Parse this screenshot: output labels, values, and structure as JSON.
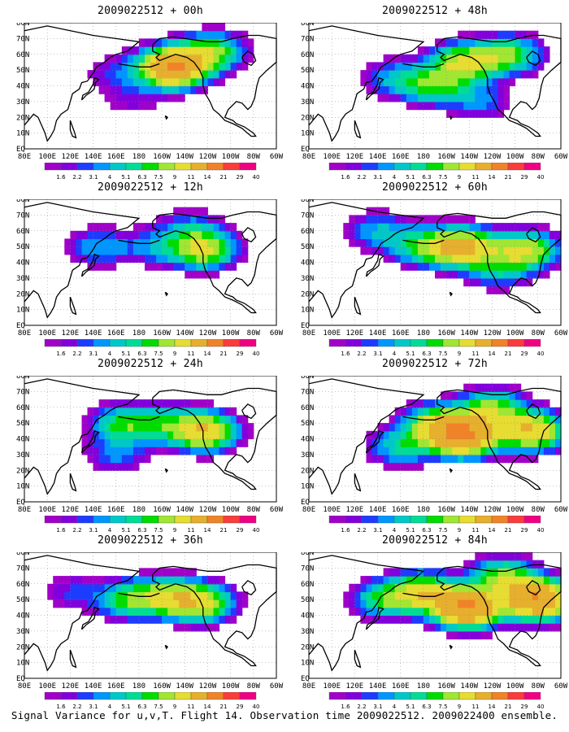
{
  "figure": {
    "caption": "Signal Variance for u,v,T. Flight 14. Observation time 2009022512. 2009022400 ensemble."
  },
  "map_axes": {
    "lon_labels": [
      "80E",
      "100E",
      "120E",
      "140E",
      "160E",
      "180",
      "160W",
      "140W",
      "120W",
      "100W",
      "80W",
      "60W"
    ],
    "lat_labels": [
      "80N",
      "70N",
      "60N",
      "50N",
      "40N",
      "30N",
      "20N",
      "10N",
      "EQ"
    ]
  },
  "colorbar": {
    "levels": [
      "1.6",
      "2.2",
      "3.1",
      "4",
      "5.1",
      "6.3",
      "7.5",
      "9",
      "11",
      "14",
      "21",
      "29",
      "40"
    ],
    "colors": [
      "#a000c8",
      "#8200dc",
      "#1e3cff",
      "#0096ff",
      "#00c8c8",
      "#00dc96",
      "#00dc00",
      "#a0e632",
      "#e6dc32",
      "#e6af2d",
      "#f08228",
      "#fa3c3c",
      "#f00082"
    ]
  },
  "panels": [
    {
      "id": "00h",
      "title": "2009022512 + 00h"
    },
    {
      "id": "48h",
      "title": "2009022512 + 48h"
    },
    {
      "id": "12h",
      "title": "2009022512 + 12h"
    },
    {
      "id": "60h",
      "title": "2009022512 + 60h"
    },
    {
      "id": "24h",
      "title": "2009022512 + 24h"
    },
    {
      "id": "72h",
      "title": "2009022512 + 72h"
    },
    {
      "id": "36h",
      "title": "2009022512 + 36h"
    },
    {
      "id": "84h",
      "title": "2009022512 + 84h"
    }
  ],
  "chart_data": [
    {
      "type": "heatmap",
      "title": "2009022512 + 00h",
      "x_domain": "80E-60W",
      "y_domain": "EQ-80N",
      "levels": [
        1.6,
        2.2,
        3.1,
        4,
        5.1,
        6.3,
        7.5,
        9,
        11,
        14,
        21,
        29,
        40
      ],
      "blobs": [
        {
          "lon": 210,
          "lat": 52,
          "peak": 21
        },
        {
          "lon": 245,
          "lat": 62,
          "peak": 9
        },
        {
          "lon": 160,
          "lat": 48,
          "peak": 3.1
        },
        {
          "lon": 175,
          "lat": 30,
          "peak": 2.2
        }
      ]
    },
    {
      "type": "heatmap",
      "title": "2009022512 + 48h",
      "x_domain": "80E-60W",
      "y_domain": "EQ-80N",
      "levels": [
        1.6,
        2.2,
        3.1,
        4,
        5.1,
        6.3,
        7.5,
        9,
        11,
        14,
        21,
        29,
        40
      ],
      "blobs": [
        {
          "lon": 215,
          "lat": 55,
          "peak": 11
        },
        {
          "lon": 190,
          "lat": 40,
          "peak": 7.5
        },
        {
          "lon": 255,
          "lat": 60,
          "peak": 9
        },
        {
          "lon": 155,
          "lat": 45,
          "peak": 5.1
        },
        {
          "lon": 230,
          "lat": 30,
          "peak": 4
        }
      ]
    },
    {
      "type": "heatmap",
      "title": "2009022512 + 12h",
      "x_domain": "80E-60W",
      "y_domain": "EQ-80N",
      "levels": [
        1.6,
        2.2,
        3.1,
        4,
        5.1,
        6.3,
        7.5,
        9,
        11,
        14,
        21,
        29,
        40
      ],
      "blobs": [
        {
          "lon": 237,
          "lat": 48,
          "peak": 11
        },
        {
          "lon": 145,
          "lat": 50,
          "peak": 5.1
        },
        {
          "lon": 195,
          "lat": 50,
          "peak": 4
        },
        {
          "lon": 225,
          "lat": 62,
          "peak": 4
        }
      ]
    },
    {
      "type": "heatmap",
      "title": "2009022512 + 60h",
      "x_domain": "80E-60W",
      "y_domain": "EQ-80N",
      "levels": [
        1.6,
        2.2,
        3.1,
        4,
        5.1,
        6.3,
        7.5,
        9,
        11,
        14,
        21,
        29,
        40
      ],
      "blobs": [
        {
          "lon": 215,
          "lat": 50,
          "peak": 14
        },
        {
          "lon": 270,
          "lat": 48,
          "peak": 11
        },
        {
          "lon": 180,
          "lat": 50,
          "peak": 7.5
        },
        {
          "lon": 245,
          "lat": 35,
          "peak": 5.1
        },
        {
          "lon": 140,
          "lat": 60,
          "peak": 5.1
        }
      ]
    },
    {
      "type": "heatmap",
      "title": "2009022512 + 24h",
      "x_domain": "80E-60W",
      "y_domain": "EQ-80N",
      "levels": [
        1.6,
        2.2,
        3.1,
        4,
        5.1,
        6.3,
        7.5,
        9,
        11,
        14,
        21,
        29,
        40
      ],
      "blobs": [
        {
          "lon": 237,
          "lat": 45,
          "peak": 14
        },
        {
          "lon": 165,
          "lat": 50,
          "peak": 7.5
        },
        {
          "lon": 200,
          "lat": 50,
          "peak": 5.1
        },
        {
          "lon": 160,
          "lat": 30,
          "peak": 4
        }
      ]
    },
    {
      "type": "heatmap",
      "title": "2009022512 + 72h",
      "x_domain": "80E-60W",
      "y_domain": "EQ-80N",
      "levels": [
        1.6,
        2.2,
        3.1,
        4,
        5.1,
        6.3,
        7.5,
        9,
        11,
        14,
        21,
        29,
        40
      ],
      "blobs": [
        {
          "lon": 215,
          "lat": 42,
          "peak": 21
        },
        {
          "lon": 275,
          "lat": 45,
          "peak": 14
        },
        {
          "lon": 190,
          "lat": 50,
          "peak": 9
        },
        {
          "lon": 240,
          "lat": 60,
          "peak": 9
        },
        {
          "lon": 160,
          "lat": 35,
          "peak": 6.3
        }
      ]
    },
    {
      "type": "heatmap",
      "title": "2009022512 + 36h",
      "x_domain": "80E-60W",
      "y_domain": "EQ-80N",
      "levels": [
        1.6,
        2.2,
        3.1,
        4,
        5.1,
        6.3,
        7.5,
        9,
        11,
        14,
        21,
        29,
        40
      ],
      "blobs": [
        {
          "lon": 235,
          "lat": 48,
          "peak": 11
        },
        {
          "lon": 205,
          "lat": 52,
          "peak": 9
        },
        {
          "lon": 170,
          "lat": 50,
          "peak": 7.5
        },
        {
          "lon": 120,
          "lat": 55,
          "peak": 3.1
        }
      ]
    },
    {
      "type": "heatmap",
      "title": "2009022512 + 84h",
      "x_domain": "80E-60W",
      "y_domain": "EQ-80N",
      "levels": [
        1.6,
        2.2,
        3.1,
        4,
        5.1,
        6.3,
        7.5,
        9,
        11,
        14,
        21,
        29,
        40
      ],
      "blobs": [
        {
          "lon": 218,
          "lat": 45,
          "peak": 21
        },
        {
          "lon": 280,
          "lat": 50,
          "peak": 21
        },
        {
          "lon": 180,
          "lat": 55,
          "peak": 11
        },
        {
          "lon": 145,
          "lat": 50,
          "peak": 7.5
        },
        {
          "lon": 250,
          "lat": 65,
          "peak": 9
        }
      ]
    }
  ]
}
